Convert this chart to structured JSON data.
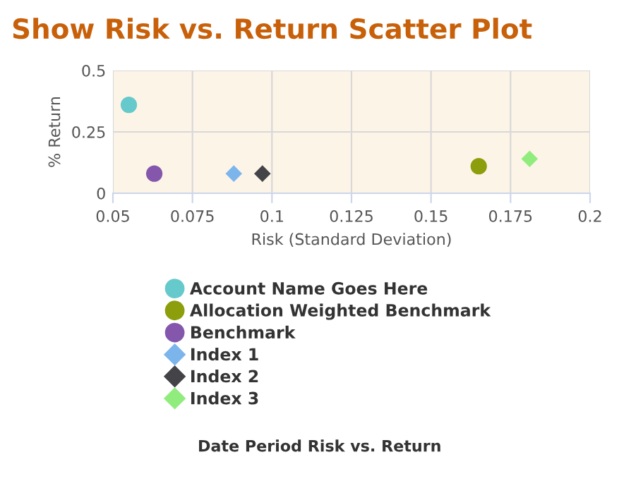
{
  "chart_data": {
    "type": "scatter",
    "title": "Show Risk vs. Return Scatter Plot",
    "xlabel": "Risk (Standard Deviation)",
    "ylabel": "% Return",
    "legend_title": "Date Period Risk vs. Return",
    "xlim": [
      0.05,
      0.2
    ],
    "xticks": [
      0.05,
      0.075,
      0.1,
      0.125,
      0.15,
      0.175,
      0.2
    ],
    "ylim": [
      0,
      0.5
    ],
    "yticks": [
      0,
      0.25,
      0.5
    ],
    "grid": true,
    "legend": "bottom",
    "series": [
      {
        "name": "Account Name Goes Here",
        "color": "#66c9cc",
        "marker": "circle",
        "x": [
          0.055
        ],
        "values": [
          0.36
        ]
      },
      {
        "name": "Allocation Weighted Benchmark",
        "color": "#8c9e0c",
        "marker": "circle",
        "x": [
          0.165
        ],
        "values": [
          0.11
        ]
      },
      {
        "name": "Benchmark",
        "color": "#8457ad",
        "marker": "circle",
        "x": [
          0.063
        ],
        "values": [
          0.08
        ]
      },
      {
        "name": "Index 1",
        "color": "#7cb5ec",
        "marker": "diamond",
        "x": [
          0.088
        ],
        "values": [
          0.08
        ]
      },
      {
        "name": "Index 2",
        "color": "#434348",
        "marker": "diamond",
        "x": [
          0.097
        ],
        "values": [
          0.08
        ]
      },
      {
        "name": "Index 3",
        "color": "#90ed7d",
        "marker": "diamond",
        "x": [
          0.181
        ],
        "values": [
          0.14
        ]
      }
    ]
  }
}
